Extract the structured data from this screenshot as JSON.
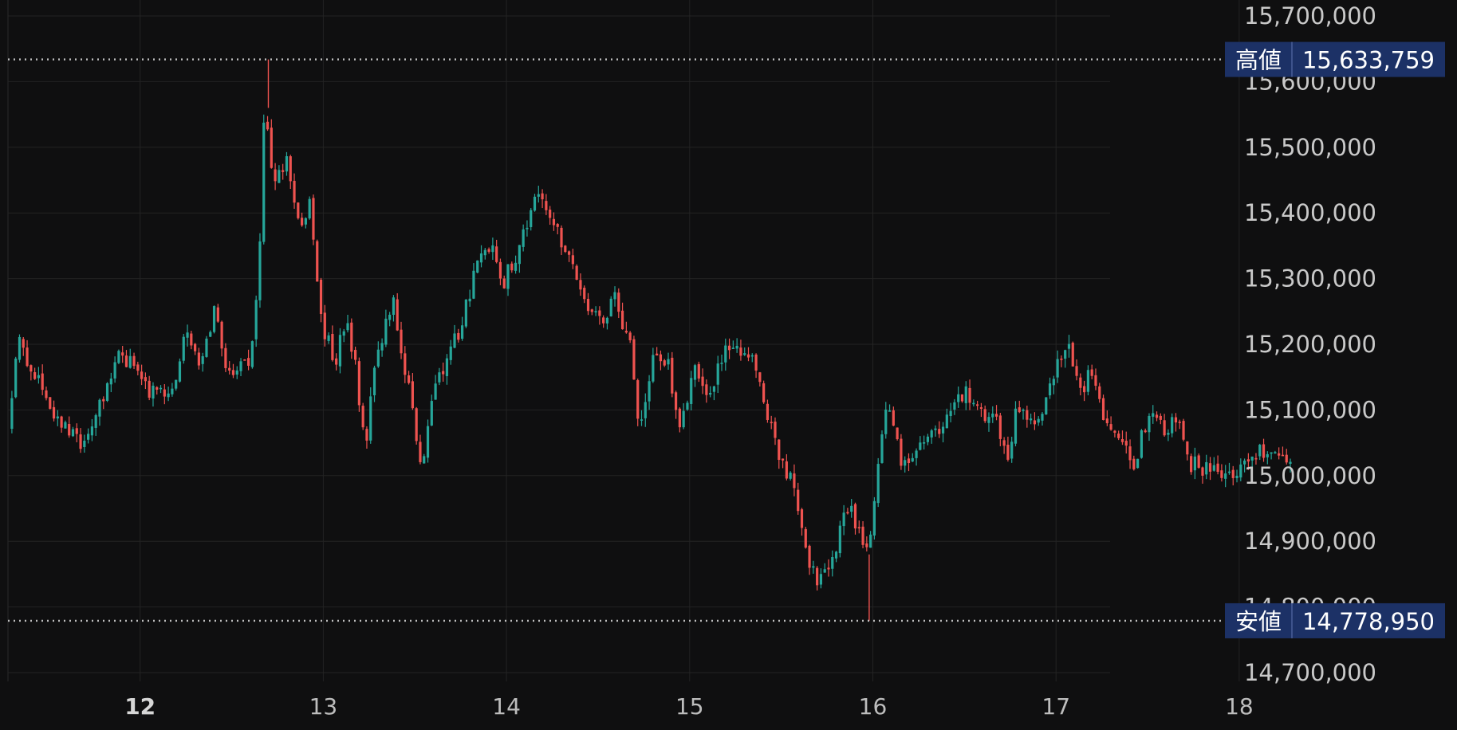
{
  "chart_data": {
    "type": "candlestick",
    "y_axis": {
      "range": [
        14680000,
        15720000
      ],
      "ticks": [
        {
          "value": 15700000,
          "label": "15,700,000"
        },
        {
          "value": 15600000,
          "label": "15,600,000"
        },
        {
          "value": 15500000,
          "label": "15,500,000"
        },
        {
          "value": 15400000,
          "label": "15,400,000"
        },
        {
          "value": 15300000,
          "label": "15,300,000"
        },
        {
          "value": 15200000,
          "label": "15,200,000"
        },
        {
          "value": 15100000,
          "label": "15,100,000"
        },
        {
          "value": 15000000,
          "label": "15,000,000"
        },
        {
          "value": 14900000,
          "label": "14,900,000"
        },
        {
          "value": 14800000,
          "label": "14,800,000"
        },
        {
          "value": 14700000,
          "label": "14,700,000"
        }
      ]
    },
    "x_axis": {
      "range": [
        11.3,
        18.3
      ],
      "ticks": [
        {
          "value": 12,
          "label": "12",
          "bold": true
        },
        {
          "value": 13,
          "label": "13"
        },
        {
          "value": 14,
          "label": "14"
        },
        {
          "value": 15,
          "label": "15"
        },
        {
          "value": 16,
          "label": "16"
        },
        {
          "value": 17,
          "label": "17"
        },
        {
          "value": 18,
          "label": "18"
        }
      ]
    },
    "grid": true,
    "high": {
      "label": "高値",
      "value": 15633759,
      "value_label": "15,633,759",
      "at_x": 12.7
    },
    "low": {
      "label": "安値",
      "value": 14778950,
      "value_label": "14,778,950",
      "at_x": 15.98
    },
    "anchors": [
      [
        11.3,
        15070000
      ],
      [
        11.35,
        15210000
      ],
      [
        11.5,
        15120000
      ],
      [
        11.7,
        15040000
      ],
      [
        11.8,
        15110000
      ],
      [
        11.9,
        15190000
      ],
      [
        12.0,
        15160000
      ],
      [
        12.1,
        15120000
      ],
      [
        12.2,
        15140000
      ],
      [
        12.28,
        15220000
      ],
      [
        12.35,
        15170000
      ],
      [
        12.43,
        15250000
      ],
      [
        12.5,
        15160000
      ],
      [
        12.62,
        15180000
      ],
      [
        12.67,
        15300000
      ],
      [
        12.7,
        15560000
      ],
      [
        12.75,
        15450000
      ],
      [
        12.82,
        15480000
      ],
      [
        12.9,
        15380000
      ],
      [
        12.95,
        15420000
      ],
      [
        13.0,
        15250000
      ],
      [
        13.08,
        15170000
      ],
      [
        13.15,
        15240000
      ],
      [
        13.2,
        15160000
      ],
      [
        13.25,
        15030000
      ],
      [
        13.3,
        15170000
      ],
      [
        13.35,
        15220000
      ],
      [
        13.4,
        15270000
      ],
      [
        13.45,
        15190000
      ],
      [
        13.52,
        15090000
      ],
      [
        13.55,
        15010000
      ],
      [
        13.62,
        15120000
      ],
      [
        13.7,
        15180000
      ],
      [
        13.78,
        15230000
      ],
      [
        13.85,
        15320000
      ],
      [
        13.95,
        15340000
      ],
      [
        14.0,
        15290000
      ],
      [
        14.08,
        15340000
      ],
      [
        14.15,
        15400000
      ],
      [
        14.2,
        15440000
      ],
      [
        14.25,
        15410000
      ],
      [
        14.32,
        15360000
      ],
      [
        14.4,
        15310000
      ],
      [
        14.45,
        15250000
      ],
      [
        14.55,
        15240000
      ],
      [
        14.62,
        15270000
      ],
      [
        14.7,
        15190000
      ],
      [
        14.75,
        15070000
      ],
      [
        14.82,
        15170000
      ],
      [
        14.9,
        15170000
      ],
      [
        14.97,
        15080000
      ],
      [
        15.05,
        15160000
      ],
      [
        15.12,
        15110000
      ],
      [
        15.2,
        15190000
      ],
      [
        15.3,
        15190000
      ],
      [
        15.38,
        15170000
      ],
      [
        15.45,
        15090000
      ],
      [
        15.52,
        15020000
      ],
      [
        15.6,
        14980000
      ],
      [
        15.65,
        14890000
      ],
      [
        15.72,
        14840000
      ],
      [
        15.8,
        14870000
      ],
      [
        15.87,
        14960000
      ],
      [
        15.93,
        14930000
      ],
      [
        16.0,
        14880000
      ],
      [
        16.04,
        14980000
      ],
      [
        16.1,
        15130000
      ],
      [
        16.18,
        15020000
      ],
      [
        16.25,
        15020000
      ],
      [
        16.3,
        15050000
      ],
      [
        16.38,
        15060000
      ],
      [
        16.45,
        15100000
      ],
      [
        16.52,
        15130000
      ],
      [
        16.6,
        15090000
      ],
      [
        16.7,
        15080000
      ],
      [
        16.75,
        15020000
      ],
      [
        16.8,
        15090000
      ],
      [
        16.9,
        15090000
      ],
      [
        16.97,
        15110000
      ],
      [
        17.02,
        15170000
      ],
      [
        17.08,
        15200000
      ],
      [
        17.15,
        15130000
      ],
      [
        17.2,
        15150000
      ],
      [
        17.3,
        15080000
      ],
      [
        17.38,
        15060000
      ],
      [
        17.45,
        15020000
      ],
      [
        17.52,
        15090000
      ],
      [
        17.6,
        15070000
      ],
      [
        17.7,
        15080000
      ],
      [
        17.75,
        15020000
      ],
      [
        17.85,
        15010000
      ],
      [
        17.95,
        15000000
      ],
      [
        18.05,
        15020000
      ],
      [
        18.15,
        15040000
      ],
      [
        18.25,
        15030000
      ],
      [
        18.3,
        15030000
      ]
    ]
  },
  "colors": {
    "up": "#26a69a",
    "down": "#ef5350",
    "background": "#0f0f10",
    "grid": "#232323",
    "badge": "#1c3166",
    "badge_divider": "#4a5f99",
    "dotted_line": "#bfbfbf"
  }
}
